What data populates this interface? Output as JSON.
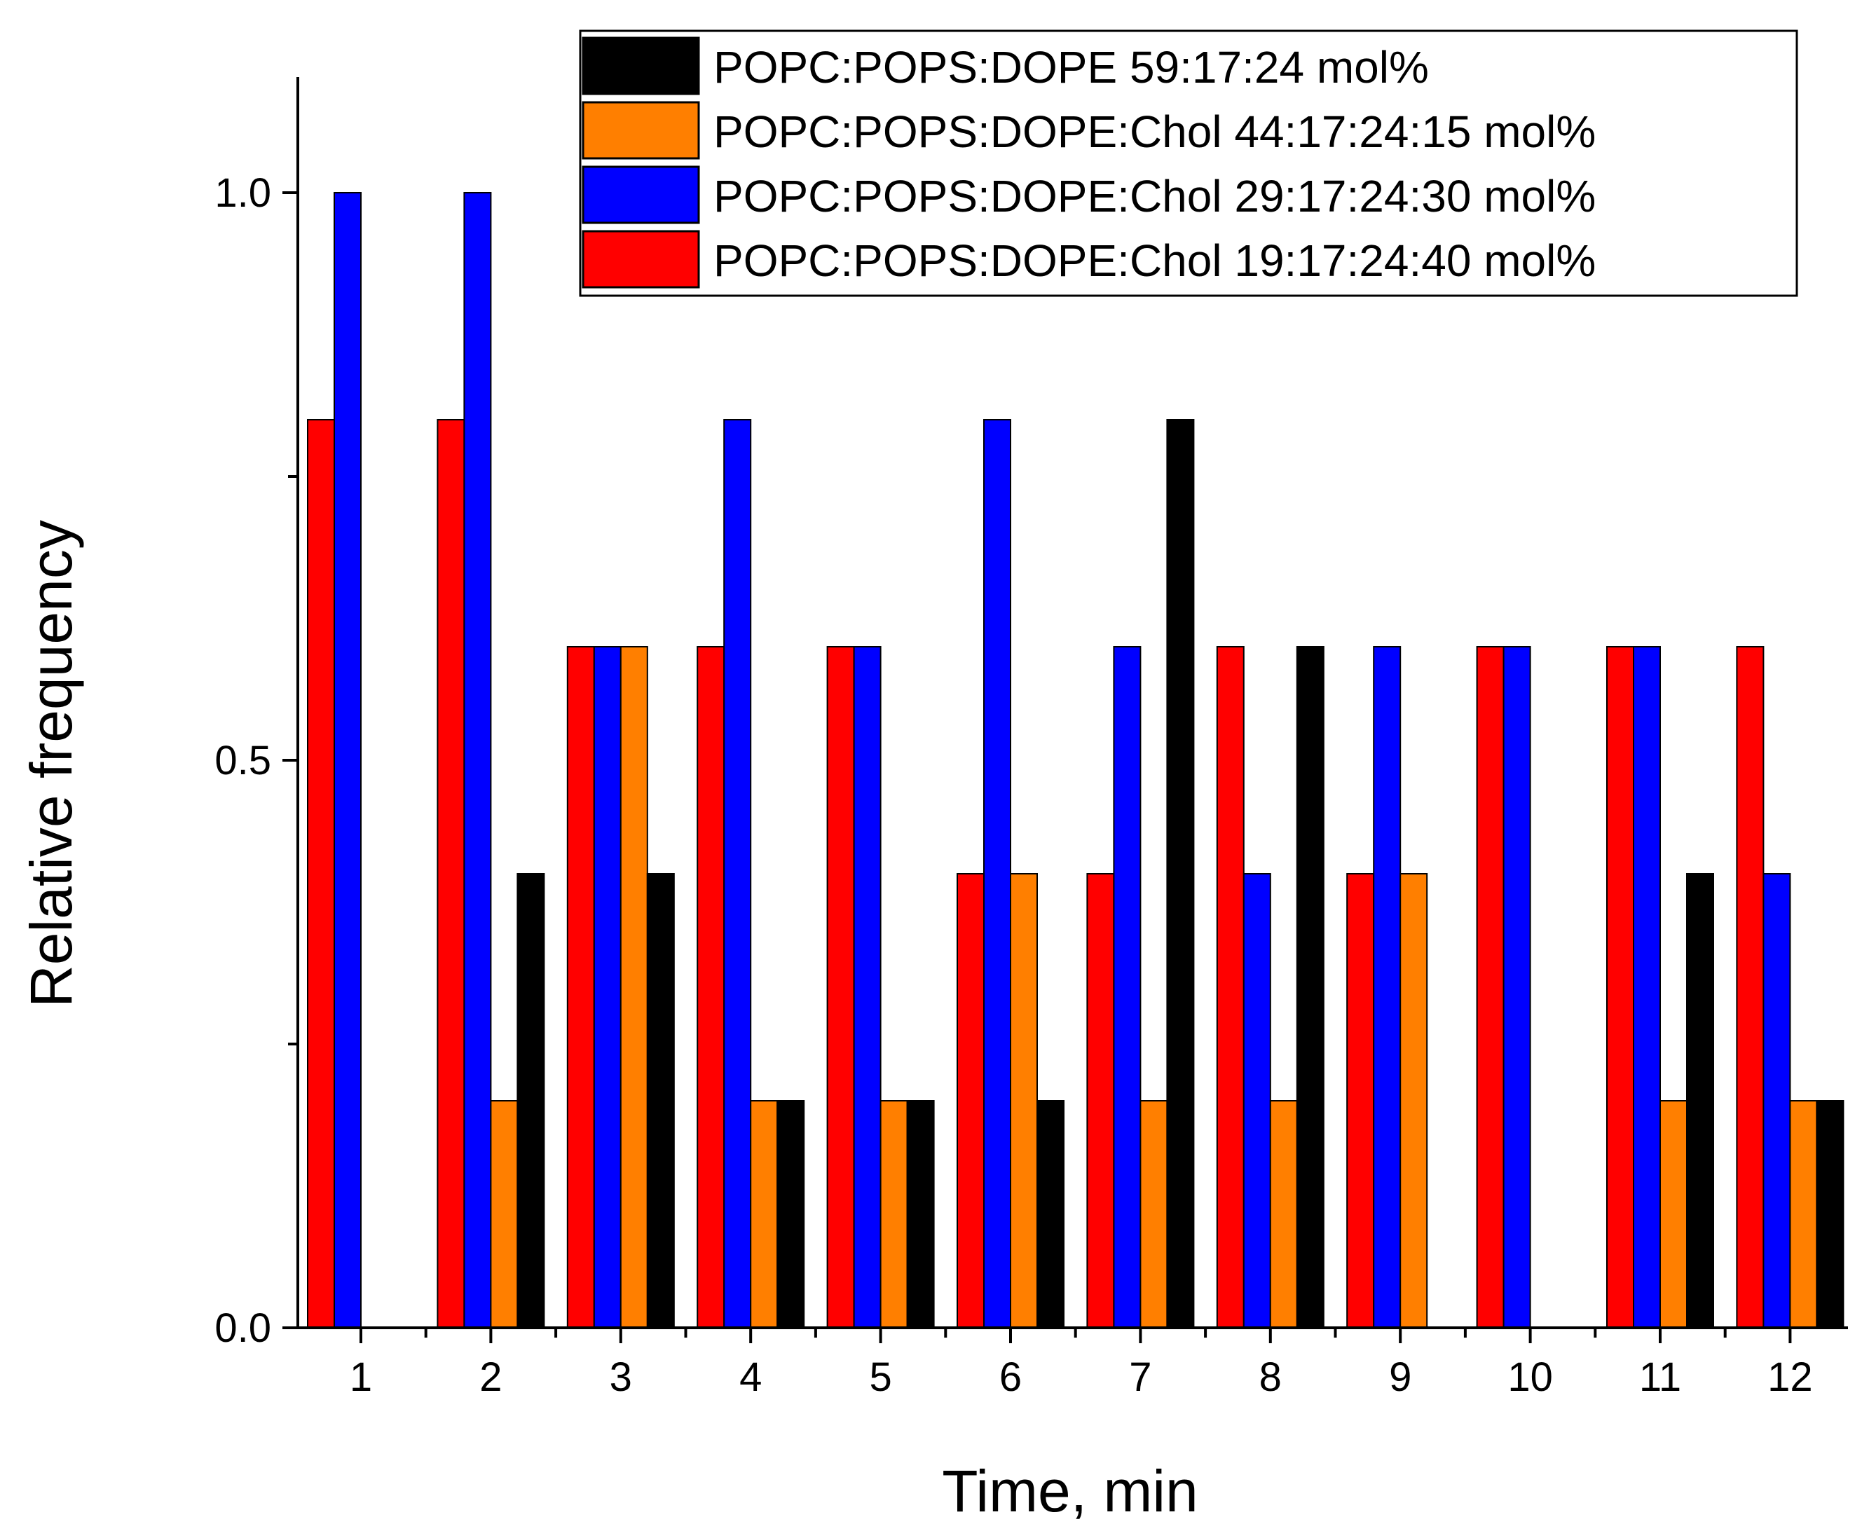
{
  "chart_data": {
    "type": "bar",
    "title": "",
    "xlabel": "Time, min",
    "ylabel": "Relative frequency",
    "categories": [
      "1",
      "2",
      "3",
      "4",
      "5",
      "6",
      "7",
      "8",
      "9",
      "10",
      "11",
      "12"
    ],
    "ylim": [
      0,
      1.1
    ],
    "yticks": [
      0.0,
      0.5,
      1.0
    ],
    "ytick_labels": [
      "0.0",
      "0.5",
      "1.0"
    ],
    "legend_position": "top-right",
    "bar_order": [
      "POPC:POPS:DOPE:Chol 19:17:24:40 mol%",
      "POPC:POPS:DOPE:Chol 29:17:24:30 mol%",
      "POPC:POPS:DOPE:Chol 44:17:24:15 mol%",
      "POPC:POPS:DOPE 59:17:24 mol%"
    ],
    "series": [
      {
        "name": "POPC:POPS:DOPE 59:17:24 mol%",
        "color": "#000000",
        "values": [
          0,
          0.4,
          0.4,
          0.2,
          0.2,
          0.2,
          0.8,
          0.6,
          0,
          0,
          0.4,
          0.2
        ]
      },
      {
        "name": "POPC:POPS:DOPE:Chol 44:17:24:15 mol%",
        "color": "#ff7f00",
        "values": [
          0,
          0.2,
          0.6,
          0.2,
          0.2,
          0.4,
          0.2,
          0.2,
          0.4,
          0,
          0.2,
          0.2
        ]
      },
      {
        "name": "POPC:POPS:DOPE:Chol 29:17:24:30 mol%",
        "color": "#0000ff",
        "values": [
          1.0,
          1.0,
          0.6,
          0.8,
          0.6,
          0.8,
          0.6,
          0.4,
          0.6,
          0.6,
          0.6,
          0.4
        ]
      },
      {
        "name": "POPC:POPS:DOPE:Chol 19:17:24:40 mol%",
        "color": "#ff0000",
        "values": [
          0.8,
          0.8,
          0.6,
          0.6,
          0.6,
          0.4,
          0.4,
          0.6,
          0.4,
          0.6,
          0.6,
          0.6
        ]
      }
    ]
  }
}
